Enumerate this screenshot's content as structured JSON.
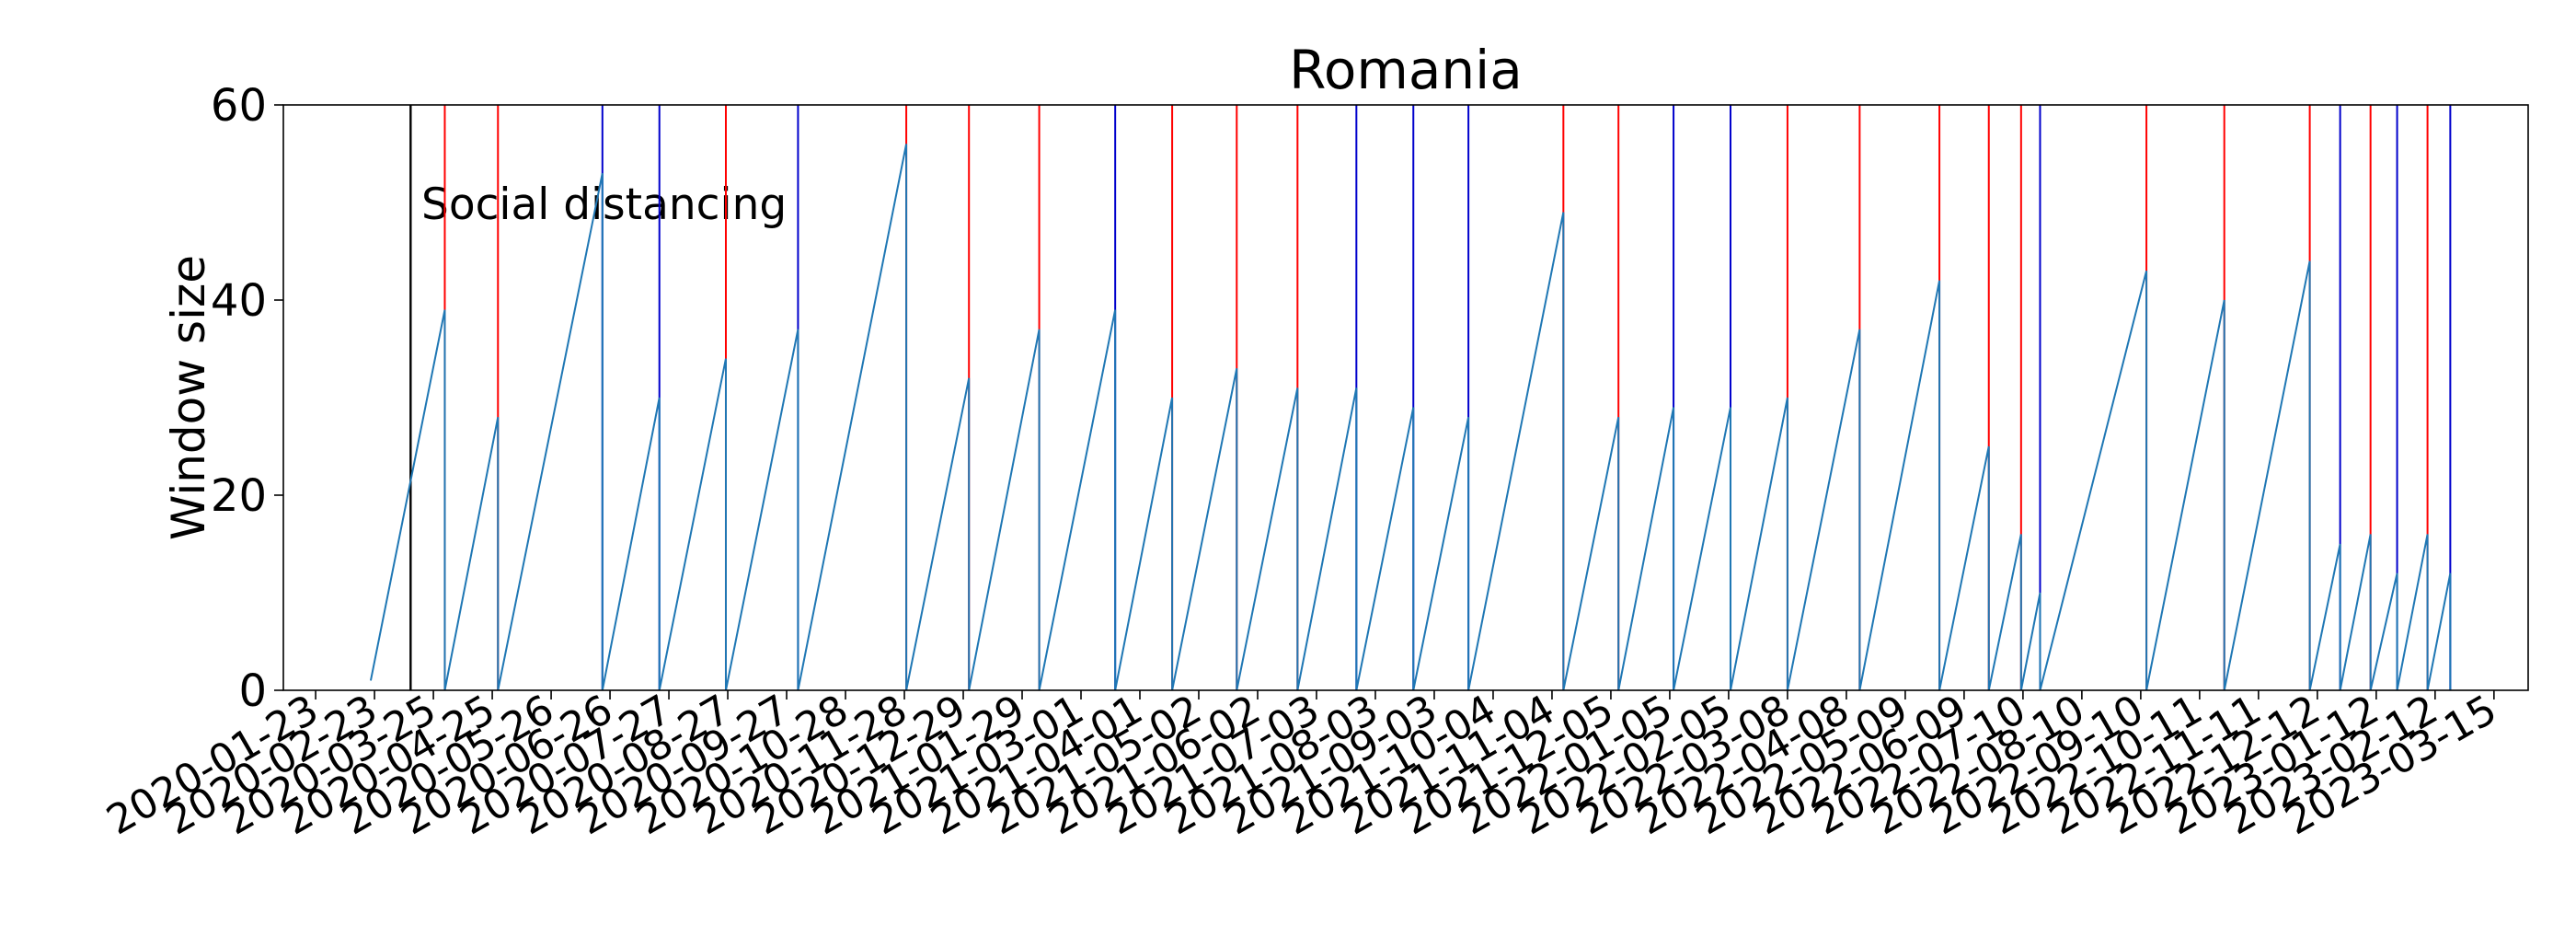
{
  "chart_data": {
    "type": "line",
    "title": "Romania",
    "xlabel": "",
    "ylabel": "Window size",
    "ylim": [
      0,
      60
    ],
    "yticks": [
      0,
      20,
      40,
      60
    ],
    "xlim": [
      "2020-01-06",
      "2023-04-02"
    ],
    "xtick_labels": [
      "2020-01-23",
      "2020-02-23",
      "2020-03-25",
      "2020-04-25",
      "2020-05-26",
      "2020-06-26",
      "2020-07-27",
      "2020-08-27",
      "2020-09-27",
      "2020-10-28",
      "2020-11-28",
      "2020-12-29",
      "2021-01-29",
      "2021-03-01",
      "2021-04-01",
      "2021-05-02",
      "2021-06-02",
      "2021-07-03",
      "2021-08-03",
      "2021-09-03",
      "2021-10-04",
      "2021-11-04",
      "2021-12-05",
      "2022-01-05",
      "2022-02-05",
      "2022-03-08",
      "2022-04-08",
      "2022-05-09",
      "2022-06-09",
      "2022-07-10",
      "2022-08-10",
      "2022-09-10",
      "2022-10-11",
      "2022-11-11",
      "2022-12-12",
      "2023-01-12",
      "2023-02-12",
      "2023-03-15"
    ],
    "grid": false,
    "colors": {
      "series": "#1f77b4",
      "red_marker": "#ff0000",
      "blue_marker": "#0000cc",
      "annotation_line": "#000000"
    },
    "annotation": {
      "label": "Social distancing",
      "date": "2020-03-13"
    },
    "series": [
      {
        "values": [
          [
            "2020-02-21",
            1
          ],
          [
            "2020-03-31",
            39
          ],
          [
            "2020-03-31",
            0
          ],
          [
            "2020-04-28",
            28
          ],
          [
            "2020-04-28",
            0
          ],
          [
            "2020-06-22",
            53
          ],
          [
            "2020-06-22",
            0
          ],
          [
            "2020-07-22",
            30
          ],
          [
            "2020-07-22",
            0
          ],
          [
            "2020-08-26",
            34
          ],
          [
            "2020-08-26",
            0
          ],
          [
            "2020-10-03",
            37
          ],
          [
            "2020-10-03",
            0
          ],
          [
            "2020-11-29",
            56
          ],
          [
            "2020-11-29",
            0
          ],
          [
            "2021-01-01",
            32
          ],
          [
            "2021-01-01",
            0
          ],
          [
            "2021-02-07",
            37
          ],
          [
            "2021-02-07",
            0
          ],
          [
            "2021-03-19",
            39
          ],
          [
            "2021-03-19",
            0
          ],
          [
            "2021-04-18",
            30
          ],
          [
            "2021-04-18",
            0
          ],
          [
            "2021-05-22",
            33
          ],
          [
            "2021-05-22",
            0
          ],
          [
            "2021-06-23",
            31
          ],
          [
            "2021-06-23",
            0
          ],
          [
            "2021-07-24",
            31
          ],
          [
            "2021-07-24",
            0
          ],
          [
            "2021-08-23",
            29
          ],
          [
            "2021-08-23",
            0
          ],
          [
            "2021-09-21",
            28
          ],
          [
            "2021-09-21",
            0
          ],
          [
            "2021-11-10",
            49
          ],
          [
            "2021-11-10",
            0
          ],
          [
            "2021-12-09",
            28
          ],
          [
            "2021-12-09",
            0
          ],
          [
            "2022-01-07",
            29
          ],
          [
            "2022-01-07",
            0
          ],
          [
            "2022-02-06",
            29
          ],
          [
            "2022-02-06",
            0
          ],
          [
            "2022-03-08",
            30
          ],
          [
            "2022-03-08",
            0
          ],
          [
            "2022-04-15",
            37
          ],
          [
            "2022-04-15",
            0
          ],
          [
            "2022-05-27",
            42
          ],
          [
            "2022-05-27",
            0
          ],
          [
            "2022-06-22",
            25
          ],
          [
            "2022-06-22",
            0
          ],
          [
            "2022-07-09",
            16
          ],
          [
            "2022-07-09",
            0
          ],
          [
            "2022-07-19",
            10
          ],
          [
            "2022-07-19",
            0
          ],
          [
            "2022-09-13",
            43
          ],
          [
            "2022-09-13",
            0
          ],
          [
            "2022-10-24",
            40
          ],
          [
            "2022-10-24",
            0
          ],
          [
            "2022-12-08",
            44
          ],
          [
            "2022-12-08",
            0
          ],
          [
            "2022-12-24",
            15
          ],
          [
            "2022-12-24",
            0
          ],
          [
            "2023-01-09",
            16
          ],
          [
            "2023-01-09",
            0
          ],
          [
            "2023-01-23",
            12
          ],
          [
            "2023-01-23",
            0
          ],
          [
            "2023-02-08",
            16
          ],
          [
            "2023-02-08",
            0
          ],
          [
            "2023-02-20",
            12
          ],
          [
            "2023-02-20",
            0
          ]
        ]
      }
    ],
    "markers": [
      {
        "date": "2020-03-31",
        "color": "red"
      },
      {
        "date": "2020-04-28",
        "color": "red"
      },
      {
        "date": "2020-06-22",
        "color": "blue"
      },
      {
        "date": "2020-07-22",
        "color": "blue"
      },
      {
        "date": "2020-08-26",
        "color": "red"
      },
      {
        "date": "2020-10-03",
        "color": "blue"
      },
      {
        "date": "2020-11-29",
        "color": "red"
      },
      {
        "date": "2021-01-01",
        "color": "red"
      },
      {
        "date": "2021-02-07",
        "color": "red"
      },
      {
        "date": "2021-03-19",
        "color": "blue"
      },
      {
        "date": "2021-04-18",
        "color": "red"
      },
      {
        "date": "2021-05-22",
        "color": "red"
      },
      {
        "date": "2021-06-23",
        "color": "red"
      },
      {
        "date": "2021-07-24",
        "color": "blue"
      },
      {
        "date": "2021-08-23",
        "color": "blue"
      },
      {
        "date": "2021-09-21",
        "color": "blue"
      },
      {
        "date": "2021-11-10",
        "color": "red"
      },
      {
        "date": "2021-12-09",
        "color": "red"
      },
      {
        "date": "2022-01-07",
        "color": "blue"
      },
      {
        "date": "2022-02-06",
        "color": "blue"
      },
      {
        "date": "2022-03-08",
        "color": "red"
      },
      {
        "date": "2022-04-15",
        "color": "red"
      },
      {
        "date": "2022-05-27",
        "color": "red"
      },
      {
        "date": "2022-06-22",
        "color": "red"
      },
      {
        "date": "2022-07-09",
        "color": "red"
      },
      {
        "date": "2022-07-19",
        "color": "blue"
      },
      {
        "date": "2022-09-13",
        "color": "red"
      },
      {
        "date": "2022-10-24",
        "color": "red"
      },
      {
        "date": "2022-12-08",
        "color": "red"
      },
      {
        "date": "2022-12-24",
        "color": "blue"
      },
      {
        "date": "2023-01-09",
        "color": "red"
      },
      {
        "date": "2023-01-23",
        "color": "blue"
      },
      {
        "date": "2023-02-08",
        "color": "red"
      },
      {
        "date": "2023-02-20",
        "color": "blue"
      }
    ]
  }
}
